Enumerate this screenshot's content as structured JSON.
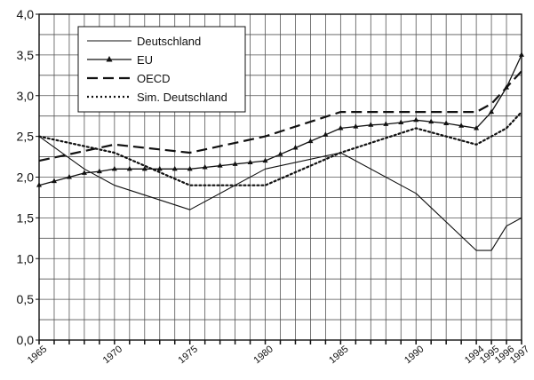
{
  "chart_data": {
    "type": "line",
    "title": "",
    "xlabel": "",
    "ylabel": "",
    "xlim": [
      1965,
      1997
    ],
    "ylim": [
      0,
      4.0
    ],
    "y_ticks": [
      "0,0",
      "0,5",
      "1,0",
      "1,5",
      "2,0",
      "2,5",
      "3,0",
      "3,5",
      "4,0"
    ],
    "x_ticks": [
      "1965",
      "1970",
      "1975",
      "1980",
      "1985",
      "1990",
      "1994",
      "1995",
      "1996",
      "1997"
    ],
    "grid": true,
    "legend_position": "top-left",
    "series": [
      {
        "name": "Deutschland",
        "style": "solid",
        "marker": "none",
        "color": "#111111",
        "x": [
          1965,
          1968,
          1970,
          1975,
          1980,
          1985,
          1990,
          1994,
          1995,
          1996,
          1997
        ],
        "y": [
          2.5,
          2.1,
          1.9,
          1.6,
          2.1,
          2.3,
          1.8,
          1.1,
          1.1,
          1.4,
          1.5
        ]
      },
      {
        "name": "EU",
        "style": "solid",
        "marker": "triangle",
        "color": "#111111",
        "x": [
          1965,
          1966,
          1967,
          1968,
          1969,
          1970,
          1971,
          1972,
          1973,
          1974,
          1975,
          1976,
          1977,
          1978,
          1979,
          1980,
          1981,
          1982,
          1983,
          1984,
          1985,
          1986,
          1987,
          1988,
          1989,
          1990,
          1991,
          1992,
          1993,
          1994,
          1995,
          1996,
          1997
        ],
        "y": [
          1.9,
          1.95,
          2.0,
          2.05,
          2.07,
          2.1,
          2.1,
          2.1,
          2.1,
          2.1,
          2.1,
          2.12,
          2.14,
          2.16,
          2.18,
          2.2,
          2.28,
          2.36,
          2.44,
          2.52,
          2.6,
          2.62,
          2.64,
          2.65,
          2.67,
          2.7,
          2.68,
          2.66,
          2.63,
          2.6,
          2.8,
          3.1,
          3.5
        ]
      },
      {
        "name": "OECD",
        "style": "dashed",
        "marker": "none",
        "color": "#111111",
        "x": [
          1965,
          1970,
          1975,
          1980,
          1985,
          1990,
          1994,
          1995,
          1996,
          1997
        ],
        "y": [
          2.2,
          2.4,
          2.3,
          2.5,
          2.8,
          2.8,
          2.8,
          2.9,
          3.1,
          3.3
        ]
      },
      {
        "name": "Sim. Deutschland",
        "style": "dotted",
        "marker": "none",
        "color": "#111111",
        "x": [
          1965,
          1970,
          1975,
          1980,
          1985,
          1990,
          1994,
          1995,
          1996,
          1997
        ],
        "y": [
          2.5,
          2.3,
          1.9,
          1.9,
          2.3,
          2.6,
          2.4,
          2.5,
          2.6,
          2.8
        ]
      }
    ]
  }
}
